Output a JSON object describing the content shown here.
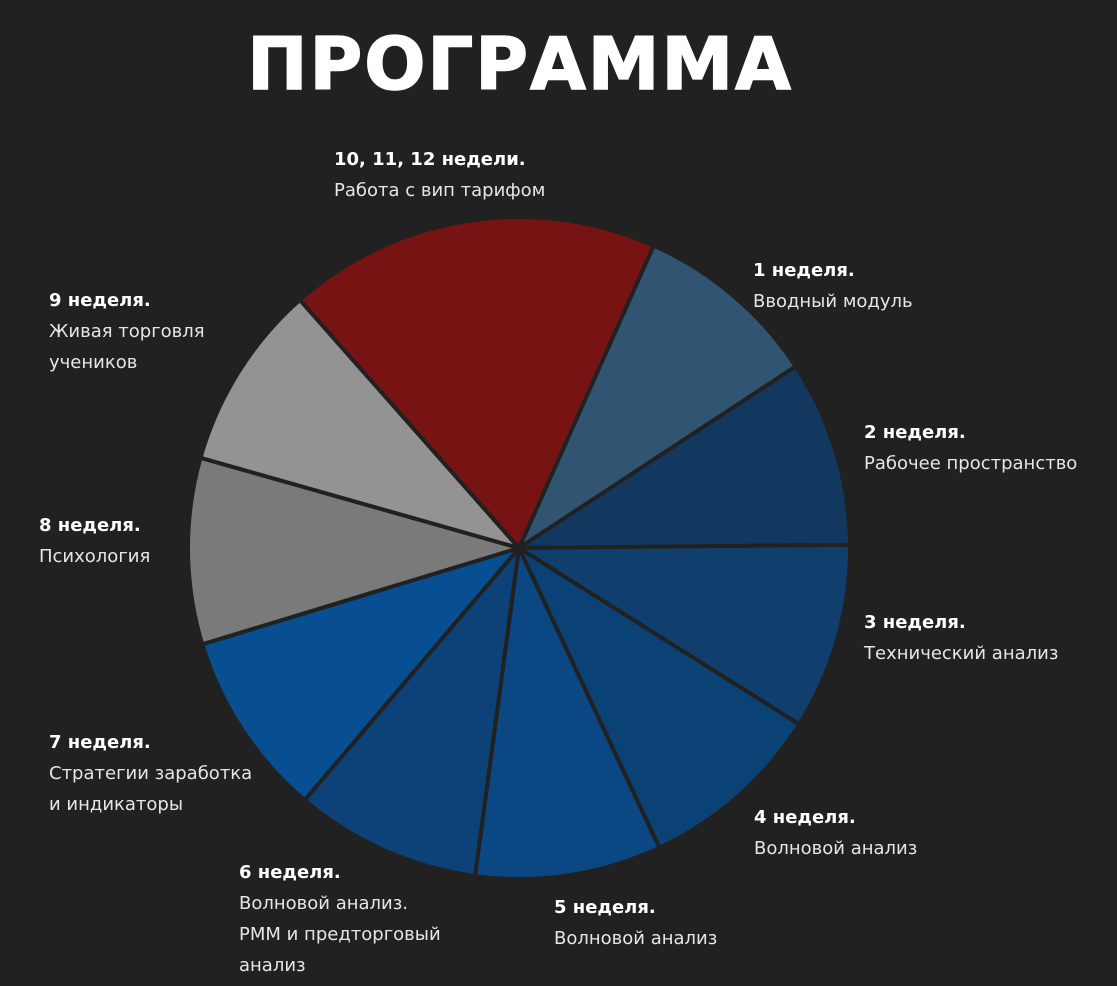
{
  "chart_data": {
    "type": "pie",
    "title": "ПРОГРАММА",
    "slices": [
      {
        "week": "1 неделя.",
        "description": "Вводный модуль",
        "value": 1,
        "color": "#315472"
      },
      {
        "week": "2 неделя.",
        "description": "Рабочее пространство",
        "value": 1,
        "color": "#133860"
      },
      {
        "week": "3 неделя.",
        "description": "Технический анализ",
        "value": 1,
        "color": "#103f6e"
      },
      {
        "week": "4 неделя.",
        "description": "Волновой анализ",
        "value": 1,
        "color": "#0b4276"
      },
      {
        "week": "5 неделя.",
        "description": "Волновой анализ",
        "value": 1,
        "color": "#0b4883"
      },
      {
        "week": "6 неделя.",
        "description": "Волновой анализ.\nPMM и предторговый\nанализ",
        "value": 1,
        "color": "#0d4278"
      },
      {
        "week": "7 неделя.",
        "description": "Стратегии заработка\nи индикаторы",
        "value": 1,
        "color": "#084f91"
      },
      {
        "week": "8 неделя.",
        "description": "Психология",
        "value": 1,
        "color": "#7a7a7a"
      },
      {
        "week": "9 неделя.",
        "description": "Живая торговля\nучеников",
        "value": 1,
        "color": "#939393"
      },
      {
        "week": "10, 11, 12 недели.",
        "description": "Работа с вип тарифом",
        "value": 2,
        "color": "#771313"
      }
    ]
  }
}
